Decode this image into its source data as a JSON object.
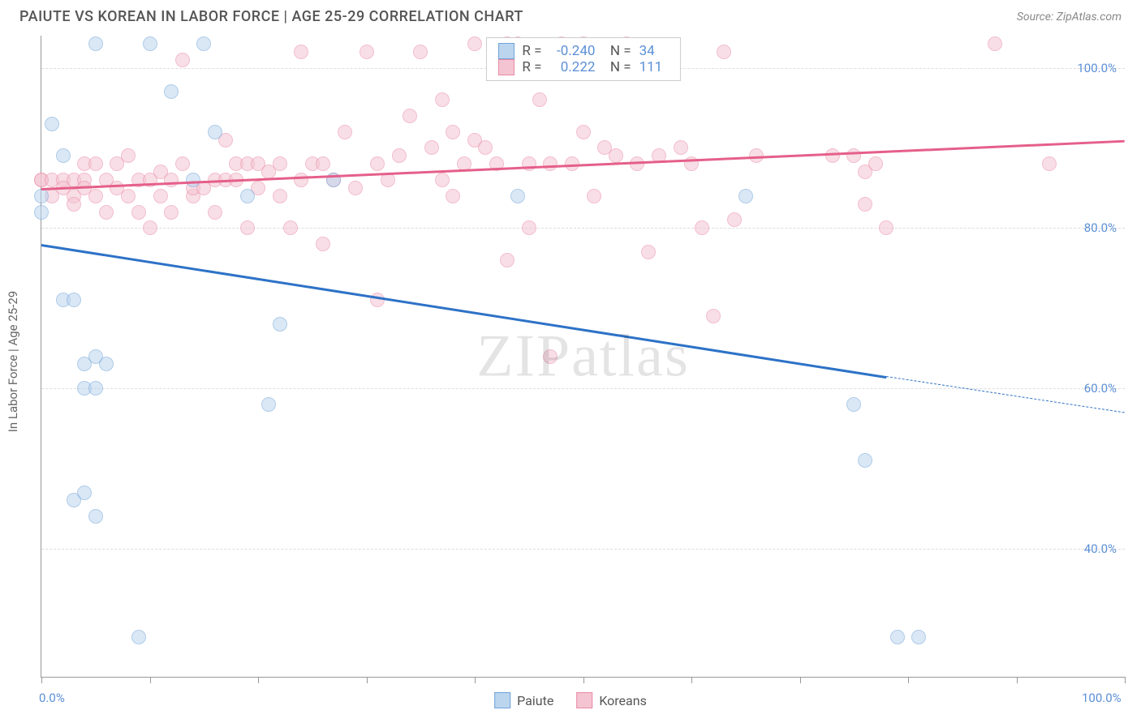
{
  "header": {
    "title": "PAIUTE VS KOREAN IN LABOR FORCE | AGE 25-29 CORRELATION CHART",
    "source": "Source: ZipAtlas.com"
  },
  "chart": {
    "type": "scatter",
    "y_axis_title": "In Labor Force | Age 25-29",
    "xlim": [
      0,
      100
    ],
    "ylim": [
      24,
      104
    ],
    "x_ticks": [
      0,
      10,
      20,
      30,
      40,
      50,
      60,
      70,
      80,
      90,
      100
    ],
    "x_tick_labels": {
      "0": "0.0%",
      "100": "100.0%"
    },
    "y_gridlines": [
      40,
      60,
      80,
      100
    ],
    "y_tick_labels": {
      "40": "40.0%",
      "60": "60.0%",
      "80": "80.0%",
      "100": "100.0%"
    },
    "background_color": "#ffffff",
    "grid_color": "#dddddd",
    "marker_radius": 9,
    "marker_opacity": 0.55,
    "series": {
      "paiute": {
        "label": "Paiute",
        "color_stroke": "#6fa3d9",
        "color_fill": "#bcd5ee",
        "R": "-0.240",
        "N": "34",
        "trend": {
          "x1": 0,
          "y1": 78,
          "x2": 78,
          "y2": 61.5,
          "color": "#2d72c7",
          "dash_to_x": 100,
          "dash_to_y": 57
        },
        "points": [
          [
            0,
            84
          ],
          [
            0,
            82
          ],
          [
            5,
            103
          ],
          [
            10,
            103
          ],
          [
            15,
            103
          ],
          [
            1,
            93
          ],
          [
            2,
            89
          ],
          [
            12,
            97
          ],
          [
            14,
            86
          ],
          [
            27,
            86
          ],
          [
            44,
            84
          ],
          [
            65,
            84
          ],
          [
            16,
            92
          ],
          [
            19,
            84
          ],
          [
            2,
            71
          ],
          [
            3,
            71
          ],
          [
            4,
            63
          ],
          [
            5,
            64
          ],
          [
            4,
            60
          ],
          [
            5,
            60
          ],
          [
            6,
            63
          ],
          [
            3,
            46
          ],
          [
            4,
            47
          ],
          [
            5,
            44
          ],
          [
            22,
            68
          ],
          [
            21,
            58
          ],
          [
            75,
            58
          ],
          [
            76,
            51
          ],
          [
            9,
            29
          ],
          [
            79,
            29
          ],
          [
            81,
            29
          ]
        ]
      },
      "koreans": {
        "label": "Koreans",
        "color_stroke": "#e98aa6",
        "color_fill": "#f4c4d2",
        "R": "0.222",
        "N": "111",
        "trend": {
          "x1": 0,
          "y1": 85,
          "x2": 100,
          "y2": 91,
          "color": "#e55f8a"
        },
        "points": [
          [
            0,
            86
          ],
          [
            0,
            86
          ],
          [
            1,
            86
          ],
          [
            1,
            84
          ],
          [
            2,
            86
          ],
          [
            2,
            85
          ],
          [
            3,
            86
          ],
          [
            3,
            84
          ],
          [
            3,
            83
          ],
          [
            4,
            88
          ],
          [
            4,
            86
          ],
          [
            4,
            85
          ],
          [
            5,
            88
          ],
          [
            5,
            84
          ],
          [
            6,
            86
          ],
          [
            6,
            82
          ],
          [
            7,
            88
          ],
          [
            7,
            85
          ],
          [
            8,
            84
          ],
          [
            8,
            89
          ],
          [
            9,
            86
          ],
          [
            9,
            82
          ],
          [
            10,
            86
          ],
          [
            10,
            80
          ],
          [
            11,
            87
          ],
          [
            11,
            84
          ],
          [
            12,
            86
          ],
          [
            12,
            82
          ],
          [
            13,
            88
          ],
          [
            13,
            101
          ],
          [
            14,
            84
          ],
          [
            14,
            85
          ],
          [
            15,
            85
          ],
          [
            16,
            86
          ],
          [
            16,
            82
          ],
          [
            17,
            86
          ],
          [
            17,
            91
          ],
          [
            18,
            88
          ],
          [
            18,
            86
          ],
          [
            19,
            88
          ],
          [
            19,
            80
          ],
          [
            20,
            85
          ],
          [
            20,
            88
          ],
          [
            21,
            87
          ],
          [
            22,
            88
          ],
          [
            22,
            84
          ],
          [
            23,
            80
          ],
          [
            24,
            86
          ],
          [
            24,
            102
          ],
          [
            25,
            88
          ],
          [
            26,
            88
          ],
          [
            26,
            78
          ],
          [
            27,
            86
          ],
          [
            28,
            92
          ],
          [
            29,
            85
          ],
          [
            30,
            102
          ],
          [
            31,
            88
          ],
          [
            31,
            71
          ],
          [
            32,
            86
          ],
          [
            33,
            89
          ],
          [
            34,
            94
          ],
          [
            35,
            102
          ],
          [
            36,
            90
          ],
          [
            37,
            86
          ],
          [
            37,
            96
          ],
          [
            38,
            92
          ],
          [
            38,
            84
          ],
          [
            39,
            88
          ],
          [
            40,
            103
          ],
          [
            40,
            91
          ],
          [
            41,
            90
          ],
          [
            42,
            88
          ],
          [
            43,
            103
          ],
          [
            43,
            76
          ],
          [
            44,
            103
          ],
          [
            45,
            88
          ],
          [
            45,
            80
          ],
          [
            46,
            96
          ],
          [
            47,
            88
          ],
          [
            47,
            64
          ],
          [
            48,
            103
          ],
          [
            49,
            88
          ],
          [
            50,
            103
          ],
          [
            50,
            92
          ],
          [
            51,
            84
          ],
          [
            52,
            90
          ],
          [
            53,
            89
          ],
          [
            54,
            103
          ],
          [
            55,
            88
          ],
          [
            56,
            77
          ],
          [
            57,
            89
          ],
          [
            59,
            90
          ],
          [
            60,
            88
          ],
          [
            61,
            80
          ],
          [
            62,
            69
          ],
          [
            63,
            102
          ],
          [
            64,
            81
          ],
          [
            66,
            89
          ],
          [
            73,
            89
          ],
          [
            75,
            89
          ],
          [
            76,
            87
          ],
          [
            76,
            83
          ],
          [
            77,
            88
          ],
          [
            78,
            80
          ],
          [
            88,
            103
          ],
          [
            93,
            88
          ]
        ]
      }
    },
    "watermark": "ZIPatlas",
    "legend_bottom": [
      "paiute",
      "koreans"
    ]
  }
}
